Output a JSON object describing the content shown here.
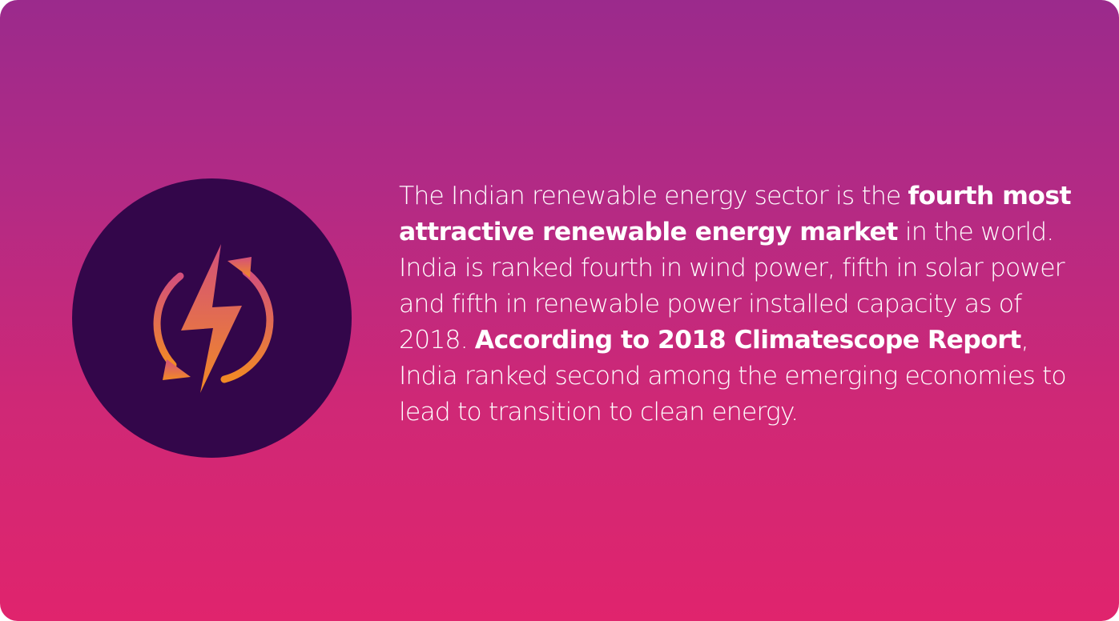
{
  "card": {
    "paragraph": {
      "segment_1": "The Indian renewable energy sector is the ",
      "bold_1": "fourth most attractive renewable energy market",
      "segment_2": " in the world. India is ranked fourth in wind power, fifth in solar power and fifth in renewable power installed capacity as of 2018. ",
      "bold_2": "According to 2018 Climatescope Report",
      "segment_3": ", India ranked second among the emerging economies to lead to transition to clean energy."
    },
    "icon": "renewable-energy-lightning-icon",
    "colors": {
      "gradient_top": "#9b2a8c",
      "gradient_bottom": "#e0246d",
      "circle": "#33064a",
      "icon_gradient_top": "#d84d78",
      "icon_gradient_bottom": "#f08a2a",
      "text": "#ffffff"
    }
  }
}
